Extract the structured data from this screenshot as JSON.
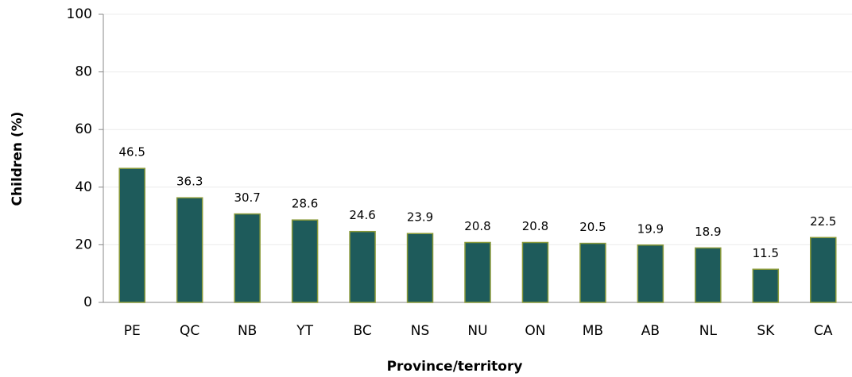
{
  "chart_data": {
    "type": "bar",
    "x_label": "Province/territory",
    "y_label": "Children (%)",
    "categories": [
      "PE",
      "QC",
      "NB",
      "YT",
      "BC",
      "NS",
      "NU",
      "ON",
      "MB",
      "AB",
      "NL",
      "SK",
      "CA"
    ],
    "values": [
      46.5,
      36.3,
      30.7,
      28.6,
      24.6,
      23.9,
      20.8,
      20.8,
      20.5,
      19.9,
      18.9,
      11.5,
      22.5
    ],
    "color": "#1e5b5b",
    "edge_color": "#8a9a3a",
    "ylim": [
      0,
      100
    ],
    "yticks": [
      0,
      20,
      40,
      60,
      80,
      100
    ],
    "grid": true
  }
}
